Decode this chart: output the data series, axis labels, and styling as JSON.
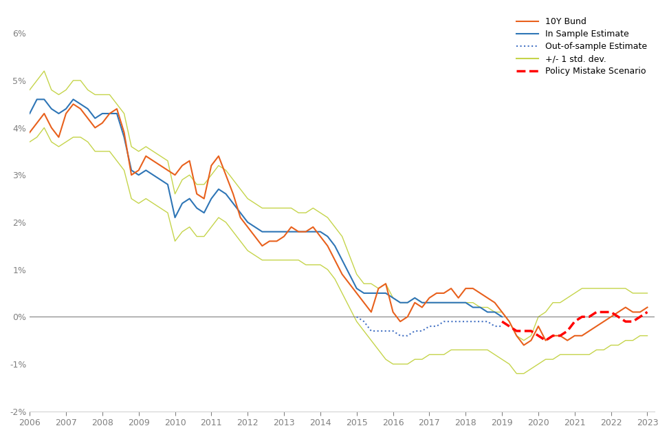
{
  "ylabel": "",
  "xlim": [
    2006.0,
    2023.2
  ],
  "ylim": [
    -0.02,
    0.065
  ],
  "yticks": [
    -0.02,
    -0.01,
    0.0,
    0.01,
    0.02,
    0.03,
    0.04,
    0.05,
    0.06
  ],
  "ytick_labels": [
    "-2%",
    "-1%",
    "0%",
    "1%",
    "2%",
    "3%",
    "4%",
    "5%",
    "6%"
  ],
  "xticks": [
    2006,
    2007,
    2008,
    2009,
    2010,
    2011,
    2012,
    2013,
    2014,
    2015,
    2016,
    2017,
    2018,
    2019,
    2020,
    2021,
    2022,
    2023
  ],
  "colors": {
    "bund": "#E8601C",
    "in_sample": "#2E75B6",
    "out_sample": "#4472C4",
    "std_dev": "#C5D44A",
    "policy_mistake": "#FF0000"
  },
  "background": "#FFFFFF",
  "legend_labels": [
    "10Y Bund",
    "In Sample Estimate",
    "Out-of-sample Estimate",
    "+/- 1 std. dev.",
    "Policy Mistake Scenario"
  ],
  "bund": [
    [
      2006.0,
      0.039
    ],
    [
      2006.2,
      0.041
    ],
    [
      2006.4,
      0.043
    ],
    [
      2006.6,
      0.04
    ],
    [
      2006.8,
      0.038
    ],
    [
      2007.0,
      0.043
    ],
    [
      2007.2,
      0.045
    ],
    [
      2007.4,
      0.044
    ],
    [
      2007.6,
      0.042
    ],
    [
      2007.8,
      0.04
    ],
    [
      2008.0,
      0.041
    ],
    [
      2008.2,
      0.043
    ],
    [
      2008.4,
      0.044
    ],
    [
      2008.6,
      0.039
    ],
    [
      2008.8,
      0.03
    ],
    [
      2009.0,
      0.031
    ],
    [
      2009.2,
      0.034
    ],
    [
      2009.4,
      0.033
    ],
    [
      2009.6,
      0.032
    ],
    [
      2009.8,
      0.031
    ],
    [
      2010.0,
      0.03
    ],
    [
      2010.2,
      0.032
    ],
    [
      2010.4,
      0.033
    ],
    [
      2010.6,
      0.026
    ],
    [
      2010.8,
      0.025
    ],
    [
      2011.0,
      0.032
    ],
    [
      2011.2,
      0.034
    ],
    [
      2011.4,
      0.03
    ],
    [
      2011.6,
      0.026
    ],
    [
      2011.8,
      0.021
    ],
    [
      2012.0,
      0.019
    ],
    [
      2012.2,
      0.017
    ],
    [
      2012.4,
      0.015
    ],
    [
      2012.6,
      0.016
    ],
    [
      2012.8,
      0.016
    ],
    [
      2013.0,
      0.017
    ],
    [
      2013.2,
      0.019
    ],
    [
      2013.4,
      0.018
    ],
    [
      2013.6,
      0.018
    ],
    [
      2013.8,
      0.019
    ],
    [
      2014.0,
      0.017
    ],
    [
      2014.2,
      0.015
    ],
    [
      2014.4,
      0.012
    ],
    [
      2014.6,
      0.009
    ],
    [
      2014.8,
      0.007
    ],
    [
      2015.0,
      0.005
    ],
    [
      2015.2,
      0.003
    ],
    [
      2015.4,
      0.001
    ],
    [
      2015.6,
      0.006
    ],
    [
      2015.8,
      0.007
    ],
    [
      2016.0,
      0.001
    ],
    [
      2016.2,
      -0.001
    ],
    [
      2016.4,
      0.0
    ],
    [
      2016.6,
      0.003
    ],
    [
      2016.8,
      0.002
    ],
    [
      2017.0,
      0.004
    ],
    [
      2017.2,
      0.005
    ],
    [
      2017.4,
      0.005
    ],
    [
      2017.6,
      0.006
    ],
    [
      2017.8,
      0.004
    ],
    [
      2018.0,
      0.006
    ],
    [
      2018.2,
      0.006
    ],
    [
      2018.4,
      0.005
    ],
    [
      2018.6,
      0.004
    ],
    [
      2018.8,
      0.003
    ],
    [
      2019.0,
      0.001
    ],
    [
      2019.2,
      -0.001
    ],
    [
      2019.4,
      -0.004
    ],
    [
      2019.6,
      -0.006
    ],
    [
      2019.8,
      -0.005
    ],
    [
      2020.0,
      -0.002
    ],
    [
      2020.2,
      -0.005
    ],
    [
      2020.4,
      -0.004
    ],
    [
      2020.6,
      -0.004
    ],
    [
      2020.8,
      -0.005
    ],
    [
      2021.0,
      -0.004
    ],
    [
      2021.2,
      -0.004
    ],
    [
      2021.4,
      -0.003
    ],
    [
      2021.6,
      -0.002
    ],
    [
      2021.8,
      -0.001
    ],
    [
      2022.0,
      0.0
    ],
    [
      2022.2,
      0.001
    ],
    [
      2022.4,
      0.002
    ],
    [
      2022.6,
      0.001
    ],
    [
      2022.8,
      0.001
    ],
    [
      2023.0,
      0.002
    ]
  ],
  "in_sample": [
    [
      2006.0,
      0.043
    ],
    [
      2006.2,
      0.046
    ],
    [
      2006.4,
      0.046
    ],
    [
      2006.6,
      0.044
    ],
    [
      2006.8,
      0.043
    ],
    [
      2007.0,
      0.044
    ],
    [
      2007.2,
      0.046
    ],
    [
      2007.4,
      0.045
    ],
    [
      2007.6,
      0.044
    ],
    [
      2007.8,
      0.042
    ],
    [
      2008.0,
      0.043
    ],
    [
      2008.2,
      0.043
    ],
    [
      2008.4,
      0.043
    ],
    [
      2008.6,
      0.038
    ],
    [
      2008.8,
      0.031
    ],
    [
      2009.0,
      0.03
    ],
    [
      2009.2,
      0.031
    ],
    [
      2009.4,
      0.03
    ],
    [
      2009.6,
      0.029
    ],
    [
      2009.8,
      0.028
    ],
    [
      2010.0,
      0.021
    ],
    [
      2010.2,
      0.024
    ],
    [
      2010.4,
      0.025
    ],
    [
      2010.6,
      0.023
    ],
    [
      2010.8,
      0.022
    ],
    [
      2011.0,
      0.025
    ],
    [
      2011.2,
      0.027
    ],
    [
      2011.4,
      0.026
    ],
    [
      2011.6,
      0.024
    ],
    [
      2011.8,
      0.022
    ],
    [
      2012.0,
      0.02
    ],
    [
      2012.2,
      0.019
    ],
    [
      2012.4,
      0.018
    ],
    [
      2012.6,
      0.018
    ],
    [
      2012.8,
      0.018
    ],
    [
      2013.0,
      0.018
    ],
    [
      2013.2,
      0.018
    ],
    [
      2013.4,
      0.018
    ],
    [
      2013.6,
      0.018
    ],
    [
      2013.8,
      0.018
    ],
    [
      2014.0,
      0.018
    ],
    [
      2014.2,
      0.017
    ],
    [
      2014.4,
      0.015
    ],
    [
      2014.6,
      0.012
    ],
    [
      2014.8,
      0.009
    ],
    [
      2015.0,
      0.006
    ],
    [
      2015.2,
      0.005
    ],
    [
      2015.4,
      0.005
    ],
    [
      2015.6,
      0.005
    ],
    [
      2015.8,
      0.005
    ],
    [
      2016.0,
      0.004
    ],
    [
      2016.2,
      0.003
    ],
    [
      2016.4,
      0.003
    ],
    [
      2016.6,
      0.004
    ],
    [
      2016.8,
      0.003
    ],
    [
      2017.0,
      0.003
    ],
    [
      2017.2,
      0.003
    ],
    [
      2017.4,
      0.003
    ],
    [
      2017.6,
      0.003
    ],
    [
      2017.8,
      0.003
    ],
    [
      2018.0,
      0.003
    ],
    [
      2018.2,
      0.002
    ],
    [
      2018.4,
      0.002
    ],
    [
      2018.6,
      0.001
    ],
    [
      2018.8,
      0.001
    ],
    [
      2019.0,
      0.0
    ]
  ],
  "out_sample": [
    [
      2015.0,
      0.0
    ],
    [
      2015.2,
      -0.001
    ],
    [
      2015.4,
      -0.003
    ],
    [
      2015.6,
      -0.003
    ],
    [
      2015.8,
      -0.003
    ],
    [
      2016.0,
      -0.003
    ],
    [
      2016.2,
      -0.004
    ],
    [
      2016.4,
      -0.004
    ],
    [
      2016.6,
      -0.003
    ],
    [
      2016.8,
      -0.003
    ],
    [
      2017.0,
      -0.002
    ],
    [
      2017.2,
      -0.002
    ],
    [
      2017.4,
      -0.001
    ],
    [
      2017.6,
      -0.001
    ],
    [
      2017.8,
      -0.001
    ],
    [
      2018.0,
      -0.001
    ],
    [
      2018.2,
      -0.001
    ],
    [
      2018.4,
      -0.001
    ],
    [
      2018.6,
      -0.001
    ],
    [
      2018.8,
      -0.002
    ],
    [
      2019.0,
      -0.002
    ]
  ],
  "std_upper": [
    [
      2006.0,
      0.048
    ],
    [
      2006.2,
      0.05
    ],
    [
      2006.4,
      0.052
    ],
    [
      2006.6,
      0.048
    ],
    [
      2006.8,
      0.047
    ],
    [
      2007.0,
      0.048
    ],
    [
      2007.2,
      0.05
    ],
    [
      2007.4,
      0.05
    ],
    [
      2007.6,
      0.048
    ],
    [
      2007.8,
      0.047
    ],
    [
      2008.0,
      0.047
    ],
    [
      2008.2,
      0.047
    ],
    [
      2008.6,
      0.043
    ],
    [
      2008.8,
      0.036
    ],
    [
      2009.0,
      0.035
    ],
    [
      2009.2,
      0.036
    ],
    [
      2009.4,
      0.035
    ],
    [
      2009.6,
      0.034
    ],
    [
      2009.8,
      0.033
    ],
    [
      2010.0,
      0.026
    ],
    [
      2010.2,
      0.029
    ],
    [
      2010.4,
      0.03
    ],
    [
      2010.6,
      0.028
    ],
    [
      2010.8,
      0.028
    ],
    [
      2011.0,
      0.03
    ],
    [
      2011.2,
      0.032
    ],
    [
      2011.4,
      0.031
    ],
    [
      2011.6,
      0.029
    ],
    [
      2011.8,
      0.027
    ],
    [
      2012.0,
      0.025
    ],
    [
      2012.2,
      0.024
    ],
    [
      2012.4,
      0.023
    ],
    [
      2012.6,
      0.023
    ],
    [
      2012.8,
      0.023
    ],
    [
      2013.0,
      0.023
    ],
    [
      2013.2,
      0.023
    ],
    [
      2013.4,
      0.022
    ],
    [
      2013.6,
      0.022
    ],
    [
      2013.8,
      0.023
    ],
    [
      2014.0,
      0.022
    ],
    [
      2014.2,
      0.021
    ],
    [
      2014.4,
      0.019
    ],
    [
      2014.6,
      0.017
    ],
    [
      2014.8,
      0.013
    ],
    [
      2015.0,
      0.009
    ],
    [
      2015.2,
      0.007
    ],
    [
      2015.4,
      0.007
    ],
    [
      2015.6,
      0.006
    ],
    [
      2015.8,
      0.007
    ],
    [
      2016.0,
      0.004
    ],
    [
      2016.2,
      0.003
    ],
    [
      2016.4,
      0.003
    ],
    [
      2016.6,
      0.004
    ],
    [
      2016.8,
      0.003
    ],
    [
      2017.0,
      0.003
    ],
    [
      2017.2,
      0.003
    ],
    [
      2017.4,
      0.003
    ],
    [
      2017.6,
      0.003
    ],
    [
      2017.8,
      0.003
    ],
    [
      2018.0,
      0.003
    ],
    [
      2018.2,
      0.003
    ],
    [
      2018.4,
      0.002
    ],
    [
      2018.6,
      0.002
    ],
    [
      2018.8,
      0.001
    ],
    [
      2019.0,
      0.001
    ],
    [
      2019.2,
      -0.001
    ],
    [
      2019.4,
      -0.004
    ],
    [
      2019.6,
      -0.005
    ],
    [
      2019.8,
      -0.004
    ],
    [
      2020.0,
      0.0
    ],
    [
      2020.2,
      0.001
    ],
    [
      2020.4,
      0.003
    ],
    [
      2020.6,
      0.003
    ],
    [
      2020.8,
      0.004
    ],
    [
      2021.0,
      0.005
    ],
    [
      2021.2,
      0.006
    ],
    [
      2021.4,
      0.006
    ],
    [
      2021.6,
      0.006
    ],
    [
      2021.8,
      0.006
    ],
    [
      2022.0,
      0.006
    ],
    [
      2022.2,
      0.006
    ],
    [
      2022.4,
      0.006
    ],
    [
      2022.6,
      0.005
    ],
    [
      2022.8,
      0.005
    ],
    [
      2023.0,
      0.005
    ]
  ],
  "std_lower": [
    [
      2006.0,
      0.037
    ],
    [
      2006.2,
      0.038
    ],
    [
      2006.4,
      0.04
    ],
    [
      2006.6,
      0.037
    ],
    [
      2006.8,
      0.036
    ],
    [
      2007.0,
      0.037
    ],
    [
      2007.2,
      0.038
    ],
    [
      2007.4,
      0.038
    ],
    [
      2007.6,
      0.037
    ],
    [
      2007.8,
      0.035
    ],
    [
      2008.0,
      0.035
    ],
    [
      2008.2,
      0.035
    ],
    [
      2008.6,
      0.031
    ],
    [
      2008.8,
      0.025
    ],
    [
      2009.0,
      0.024
    ],
    [
      2009.2,
      0.025
    ],
    [
      2009.4,
      0.024
    ],
    [
      2009.6,
      0.023
    ],
    [
      2009.8,
      0.022
    ],
    [
      2010.0,
      0.016
    ],
    [
      2010.2,
      0.018
    ],
    [
      2010.4,
      0.019
    ],
    [
      2010.6,
      0.017
    ],
    [
      2010.8,
      0.017
    ],
    [
      2011.0,
      0.019
    ],
    [
      2011.2,
      0.021
    ],
    [
      2011.4,
      0.02
    ],
    [
      2011.6,
      0.018
    ],
    [
      2011.8,
      0.016
    ],
    [
      2012.0,
      0.014
    ],
    [
      2012.2,
      0.013
    ],
    [
      2012.4,
      0.012
    ],
    [
      2012.6,
      0.012
    ],
    [
      2012.8,
      0.012
    ],
    [
      2013.0,
      0.012
    ],
    [
      2013.2,
      0.012
    ],
    [
      2013.4,
      0.012
    ],
    [
      2013.6,
      0.011
    ],
    [
      2013.8,
      0.011
    ],
    [
      2014.0,
      0.011
    ],
    [
      2014.2,
      0.01
    ],
    [
      2014.4,
      0.008
    ],
    [
      2014.6,
      0.005
    ],
    [
      2014.8,
      0.002
    ],
    [
      2015.0,
      -0.001
    ],
    [
      2015.2,
      -0.003
    ],
    [
      2015.4,
      -0.005
    ],
    [
      2015.6,
      -0.007
    ],
    [
      2015.8,
      -0.009
    ],
    [
      2016.0,
      -0.01
    ],
    [
      2016.2,
      -0.01
    ],
    [
      2016.4,
      -0.01
    ],
    [
      2016.6,
      -0.009
    ],
    [
      2016.8,
      -0.009
    ],
    [
      2017.0,
      -0.008
    ],
    [
      2017.2,
      -0.008
    ],
    [
      2017.4,
      -0.008
    ],
    [
      2017.6,
      -0.007
    ],
    [
      2017.8,
      -0.007
    ],
    [
      2018.0,
      -0.007
    ],
    [
      2018.2,
      -0.007
    ],
    [
      2018.4,
      -0.007
    ],
    [
      2018.6,
      -0.007
    ],
    [
      2018.8,
      -0.008
    ],
    [
      2019.0,
      -0.009
    ],
    [
      2019.2,
      -0.01
    ],
    [
      2019.4,
      -0.012
    ],
    [
      2019.6,
      -0.012
    ],
    [
      2019.8,
      -0.011
    ],
    [
      2020.0,
      -0.01
    ],
    [
      2020.2,
      -0.009
    ],
    [
      2020.4,
      -0.009
    ],
    [
      2020.6,
      -0.008
    ],
    [
      2020.8,
      -0.008
    ],
    [
      2021.0,
      -0.008
    ],
    [
      2021.2,
      -0.008
    ],
    [
      2021.4,
      -0.008
    ],
    [
      2021.6,
      -0.007
    ],
    [
      2021.8,
      -0.007
    ],
    [
      2022.0,
      -0.006
    ],
    [
      2022.2,
      -0.006
    ],
    [
      2022.4,
      -0.005
    ],
    [
      2022.6,
      -0.005
    ],
    [
      2022.8,
      -0.004
    ],
    [
      2023.0,
      -0.004
    ]
  ],
  "policy_mistake": [
    [
      2019.0,
      -0.001
    ],
    [
      2019.2,
      -0.002
    ],
    [
      2019.4,
      -0.003
    ],
    [
      2019.6,
      -0.003
    ],
    [
      2019.8,
      -0.003
    ],
    [
      2020.0,
      -0.004
    ],
    [
      2020.2,
      -0.005
    ],
    [
      2020.4,
      -0.004
    ],
    [
      2020.6,
      -0.004
    ],
    [
      2020.8,
      -0.003
    ],
    [
      2021.0,
      -0.001
    ],
    [
      2021.2,
      0.0
    ],
    [
      2021.4,
      0.0
    ],
    [
      2021.6,
      0.001
    ],
    [
      2021.8,
      0.001
    ],
    [
      2022.0,
      0.001
    ],
    [
      2022.2,
      0.0
    ],
    [
      2022.4,
      -0.001
    ],
    [
      2022.6,
      -0.001
    ],
    [
      2022.8,
      0.0
    ],
    [
      2023.0,
      0.001
    ]
  ]
}
